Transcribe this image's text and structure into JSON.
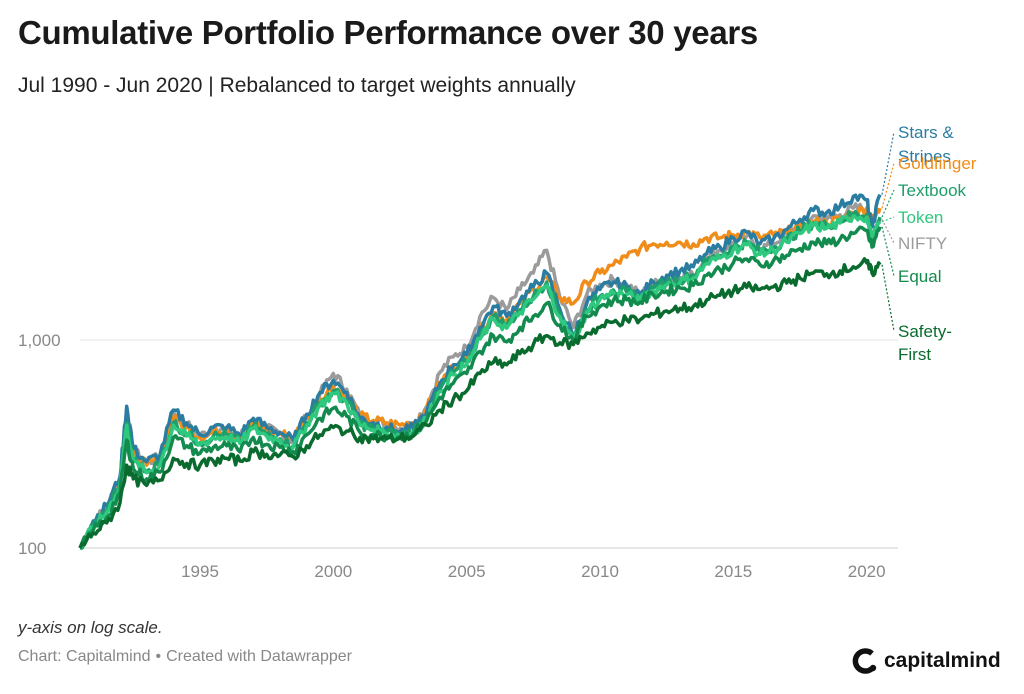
{
  "header": {
    "title": "Cumulative Portfolio Performance over 30 years",
    "subtitle": "Jul 1990 - Jun 2020 | Rebalanced to target weights annually"
  },
  "footer": {
    "note": "y-axis on log scale.",
    "source": "Chart: Capitalmind",
    "credit": "Created with Datawrapper",
    "separator": "•",
    "brand": "capitalmind",
    "brand_mark_icon": "capitalmind-c-logo-icon"
  },
  "chart_data": {
    "type": "line",
    "title": "Cumulative Portfolio Performance over 30 years",
    "subtitle": "Jul 1990 - Jun 2020 | Rebalanced to target weights annually",
    "xlabel": "",
    "ylabel": "",
    "y_scale": "log",
    "xlim": [
      1990.5,
      2020.5
    ],
    "ylim": [
      100,
      5000
    ],
    "x_ticks": [
      1995,
      2000,
      2005,
      2010,
      2015,
      2020
    ],
    "x_tick_labels": [
      "1995",
      "2000",
      "2005",
      "2010",
      "2015",
      "2020"
    ],
    "y_ticks": [
      100,
      1000
    ],
    "y_tick_labels": [
      "100",
      "1,000"
    ],
    "grid": "horizontal",
    "legend": "direct labels at right end",
    "x": [
      1990.5,
      1991.0,
      1991.5,
      1992.0,
      1992.25,
      1992.5,
      1993.0,
      1993.5,
      1994.0,
      1994.5,
      1995.0,
      1995.5,
      1996.0,
      1996.5,
      1997.0,
      1997.5,
      1998.0,
      1998.5,
      1999.0,
      1999.5,
      2000.0,
      2000.5,
      2001.0,
      2001.5,
      2002.0,
      2002.5,
      2003.0,
      2003.5,
      2004.0,
      2004.5,
      2005.0,
      2005.5,
      2006.0,
      2006.5,
      2007.0,
      2007.5,
      2008.0,
      2008.5,
      2009.0,
      2009.5,
      2010.0,
      2010.5,
      2011.0,
      2011.5,
      2012.0,
      2012.5,
      2013.0,
      2013.5,
      2014.0,
      2014.5,
      2015.0,
      2015.5,
      2016.0,
      2016.5,
      2017.0,
      2017.5,
      2018.0,
      2018.5,
      2019.0,
      2019.5,
      2020.0,
      2020.2,
      2020.5
    ],
    "series": [
      {
        "name": "Stars & Stripes",
        "color": "#2a7ca0",
        "values": [
          100,
          135,
          160,
          220,
          480,
          300,
          260,
          280,
          460,
          400,
          350,
          380,
          380,
          350,
          420,
          380,
          360,
          330,
          440,
          560,
          640,
          560,
          420,
          400,
          380,
          360,
          380,
          450,
          620,
          760,
          850,
          1150,
          1450,
          1300,
          1550,
          1800,
          2100,
          1400,
          1050,
          1500,
          1750,
          1900,
          1800,
          1650,
          1900,
          2050,
          2150,
          2250,
          2600,
          2800,
          3100,
          3300,
          2900,
          3050,
          3400,
          3800,
          4200,
          4100,
          4400,
          4900,
          4700,
          3500,
          5000
        ]
      },
      {
        "name": "Goldfinger",
        "color": "#f08c1a",
        "values": [
          100,
          130,
          155,
          210,
          430,
          280,
          250,
          270,
          430,
          380,
          340,
          360,
          370,
          340,
          400,
          370,
          355,
          340,
          420,
          520,
          600,
          540,
          430,
          410,
          400,
          390,
          400,
          470,
          620,
          740,
          820,
          1100,
          1350,
          1250,
          1500,
          1750,
          2000,
          1600,
          1500,
          1900,
          2100,
          2300,
          2500,
          2750,
          2900,
          2950,
          2950,
          2900,
          3100,
          3100,
          3200,
          3300,
          3100,
          3200,
          3300,
          3500,
          3700,
          3650,
          3800,
          4050,
          4300,
          3700,
          4300
        ]
      },
      {
        "name": "Textbook",
        "color": "#1e9e6a",
        "values": [
          100,
          128,
          150,
          205,
          400,
          265,
          235,
          255,
          400,
          355,
          320,
          345,
          350,
          325,
          385,
          350,
          335,
          310,
          400,
          500,
          570,
          510,
          395,
          375,
          360,
          350,
          365,
          430,
          580,
          700,
          780,
          1040,
          1300,
          1170,
          1400,
          1620,
          1900,
          1330,
          1010,
          1400,
          1620,
          1740,
          1700,
          1580,
          1780,
          1900,
          1950,
          2050,
          2400,
          2550,
          2800,
          2950,
          2650,
          2780,
          3050,
          3350,
          3650,
          3550,
          3750,
          4050,
          4000,
          3100,
          3900
        ]
      },
      {
        "name": "Token",
        "color": "#2ec97e",
        "values": [
          100,
          126,
          148,
          200,
          390,
          260,
          230,
          250,
          390,
          345,
          315,
          338,
          342,
          318,
          375,
          345,
          330,
          305,
          390,
          485,
          555,
          500,
          390,
          370,
          355,
          345,
          360,
          420,
          565,
          680,
          760,
          1010,
          1260,
          1140,
          1360,
          1570,
          1830,
          1290,
          990,
          1360,
          1570,
          1690,
          1650,
          1540,
          1730,
          1840,
          1900,
          1990,
          2330,
          2480,
          2720,
          2870,
          2580,
          2700,
          2960,
          3250,
          3550,
          3450,
          3650,
          3950,
          3900,
          3050,
          3700
        ]
      },
      {
        "name": "NIFTY",
        "color": "#9b9b9b",
        "values": [
          100,
          132,
          158,
          215,
          470,
          295,
          255,
          275,
          450,
          395,
          345,
          372,
          372,
          345,
          410,
          375,
          355,
          328,
          430,
          550,
          690,
          580,
          430,
          410,
          390,
          375,
          395,
          480,
          700,
          830,
          920,
          1300,
          1600,
          1400,
          1750,
          2100,
          2700,
          1600,
          1150,
          1650,
          1850,
          1950,
          1850,
          1650,
          1850,
          1950,
          2000,
          2050,
          2500,
          2700,
          2950,
          3150,
          2750,
          2900,
          3250,
          3600,
          3950,
          3800,
          4000,
          4300,
          4300,
          2900,
          3800
        ]
      },
      {
        "name": "Equal",
        "color": "#138a4e",
        "values": [
          100,
          122,
          140,
          185,
          330,
          240,
          215,
          232,
          340,
          310,
          285,
          305,
          310,
          290,
          340,
          315,
          305,
          290,
          350,
          420,
          470,
          430,
          360,
          350,
          345,
          340,
          355,
          410,
          530,
          620,
          690,
          880,
          1050,
          980,
          1150,
          1300,
          1500,
          1180,
          1000,
          1300,
          1450,
          1550,
          1560,
          1520,
          1650,
          1720,
          1780,
          1830,
          2050,
          2180,
          2350,
          2450,
          2300,
          2400,
          2550,
          2750,
          2950,
          2900,
          3050,
          3250,
          3350,
          2800,
          3500
        ]
      },
      {
        "name": "Safety-First",
        "color": "#0a6b2e",
        "values": [
          100,
          118,
          132,
          165,
          250,
          215,
          200,
          212,
          270,
          255,
          250,
          262,
          270,
          262,
          290,
          282,
          280,
          275,
          310,
          350,
          380,
          365,
          340,
          335,
          335,
          338,
          345,
          390,
          460,
          520,
          570,
          690,
          780,
          760,
          860,
          950,
          1050,
          970,
          950,
          1080,
          1150,
          1220,
          1250,
          1250,
          1330,
          1380,
          1420,
          1450,
          1560,
          1640,
          1720,
          1790,
          1750,
          1800,
          1880,
          1980,
          2100,
          2080,
          2150,
          2250,
          2350,
          2100,
          2300
        ]
      }
    ],
    "labels": [
      {
        "series": "Stars & Stripes",
        "lines": [
          "Stars &",
          "Stripes"
        ]
      },
      {
        "series": "Goldfinger",
        "lines": [
          "Goldfinger"
        ]
      },
      {
        "series": "Textbook",
        "lines": [
          "Textbook"
        ]
      },
      {
        "series": "Token",
        "lines": [
          "Token"
        ]
      },
      {
        "series": "NIFTY",
        "lines": [
          "NIFTY"
        ]
      },
      {
        "series": "Equal",
        "lines": [
          "Equal"
        ]
      },
      {
        "series": "Safety-First",
        "lines": [
          "Safety-",
          "First"
        ]
      }
    ]
  }
}
